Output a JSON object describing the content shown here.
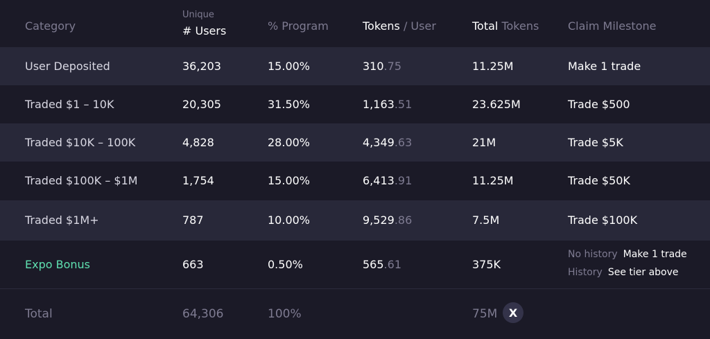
{
  "header": {
    "category": "Category",
    "unique": "Unique",
    "users": "# Users",
    "program": "% Program",
    "tokens_a": "Tokens",
    "tokens_b": " / User",
    "total_a": "Total",
    "total_b": " Tokens",
    "milestone": "Claim Milestone"
  },
  "rows": [
    {
      "category": "User Deposited",
      "users": "36,203",
      "program": "15.00%",
      "tok_int": "310",
      "tok_dec": ".75",
      "total": "11.25M",
      "milestone": "Make 1 trade"
    },
    {
      "category": "Traded $1 – 10K",
      "users": "20,305",
      "program": "31.50%",
      "tok_int": "1,163",
      "tok_dec": ".51",
      "total": "23.625M",
      "milestone": "Trade $500"
    },
    {
      "category": "Traded $10K – 100K",
      "users": "4,828",
      "program": "28.00%",
      "tok_int": "4,349",
      "tok_dec": ".63",
      "total": "21M",
      "milestone": "Trade $5K"
    },
    {
      "category": "Traded $100K – $1M",
      "users": "1,754",
      "program": "15.00%",
      "tok_int": "6,413",
      "tok_dec": ".91",
      "total": "11.25M",
      "milestone": "Trade $50K"
    },
    {
      "category": "Traded $1M+",
      "users": "787",
      "program": "10.00%",
      "tok_int": "9,529",
      "tok_dec": ".86",
      "total": "7.5M",
      "milestone": "Trade $100K"
    }
  ],
  "expo": {
    "category": "Expo Bonus",
    "users": "663",
    "program": "0.50%",
    "tok_int": "565",
    "tok_dec": ".61",
    "total": "375K",
    "no_history_label": "No history",
    "no_history_value": "Make 1 trade",
    "history_label": "History",
    "history_value": "See tier above"
  },
  "total": {
    "label": "Total",
    "users": "64,306",
    "program": "100%",
    "tokens": "75M",
    "badge": "X"
  },
  "colors": {
    "background": "#1b1a27",
    "alt_row": "#282839",
    "muted": "#7e7b91",
    "accent_green": "#5fe0b0"
  }
}
